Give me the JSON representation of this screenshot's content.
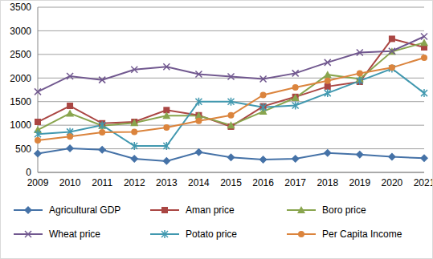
{
  "chart_data": {
    "type": "line",
    "categories": [
      "2009",
      "2010",
      "2011",
      "2012",
      "2013",
      "2014",
      "2015",
      "2016",
      "2017",
      "2018",
      "2019",
      "2020",
      "2021"
    ],
    "ylim": [
      0,
      3500
    ],
    "yticks": [
      0,
      500,
      1000,
      1500,
      2000,
      2500,
      3000,
      3500
    ],
    "grid": true,
    "legend": "bottom",
    "series": [
      {
        "name": "Agricultural GDP",
        "color": "#4572a7",
        "marker": "diamond",
        "values": [
          400,
          510,
          480,
          290,
          240,
          430,
          320,
          270,
          290,
          410,
          380,
          330,
          300
        ]
      },
      {
        "name": "Aman price",
        "color": "#aa4643",
        "marker": "square",
        "values": [
          1070,
          1410,
          1040,
          1070,
          1320,
          1210,
          970,
          1400,
          1600,
          1820,
          1920,
          2830,
          2650
        ]
      },
      {
        "name": "Boro price",
        "color": "#89a54e",
        "marker": "triangle",
        "values": [
          900,
          1250,
          990,
          1050,
          1200,
          1200,
          1000,
          1290,
          1580,
          2070,
          1980,
          2560,
          2750
        ]
      },
      {
        "name": "Wheat price",
        "color": "#71588f",
        "marker": "x",
        "values": [
          1710,
          2040,
          1960,
          2180,
          2240,
          2080,
          2030,
          1980,
          2100,
          2330,
          2540,
          2570,
          2880
        ]
      },
      {
        "name": "Potato price",
        "color": "#4198af",
        "marker": "star",
        "values": [
          810,
          860,
          1000,
          560,
          560,
          1500,
          1500,
          1380,
          1420,
          1680,
          1940,
          2200,
          1680
        ]
      },
      {
        "name": "Per Capita Income",
        "color": "#db843d",
        "marker": "circle",
        "values": [
          680,
          760,
          850,
          860,
          950,
          1090,
          1210,
          1640,
          1800,
          1940,
          2100,
          2220,
          2430
        ]
      }
    ]
  }
}
